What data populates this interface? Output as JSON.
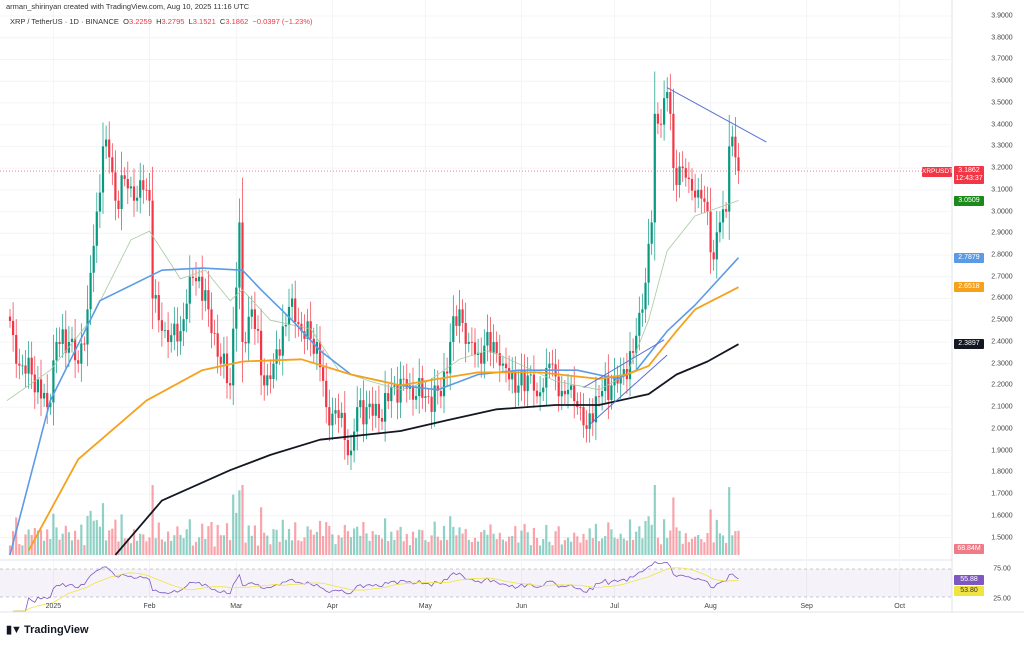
{
  "header": {
    "credit": "arman_shirinyan created with TradingView.com, Aug 10, 2025 11:16 UTC",
    "symbol": "XRP / TetherUS · 1D · BINANCE",
    "o_label": "O",
    "o": "3.2259",
    "h_label": "H",
    "h": "3.2795",
    "l_label": "L",
    "l": "3.1521",
    "c_label": "C",
    "c": "3.1862",
    "change": "−0.0397 (−1.23%)"
  },
  "colors": {
    "up": "#089981",
    "down": "#f23645",
    "ma20": "#a5c9a0",
    "ma50": "#5b9be6",
    "ma100": "#f5a11c",
    "ma200": "#131722",
    "rsi": "#7e57c2",
    "rsi_ma": "#f0e442",
    "trend": "#5b6fd6"
  },
  "chart_data": {
    "type": "candlestick",
    "title": "",
    "y_ticks": [
      "3.9000",
      "3.8000",
      "3.7000",
      "3.6000",
      "3.5000",
      "3.4000",
      "3.3000",
      "3.2000",
      "3.1000",
      "3.0000",
      "2.9000",
      "2.8000",
      "2.7000",
      "2.6000",
      "2.5000",
      "2.4000",
      "2.3000",
      "2.2000",
      "2.1000",
      "2.0000",
      "1.9000",
      "1.8000",
      "1.7000",
      "1.6000",
      "1.5000"
    ],
    "ylim": [
      1.5,
      3.9
    ],
    "x_ticks": [
      {
        "label": "2025",
        "date": "2025-01-01"
      },
      {
        "label": "Feb",
        "date": "2025-02-01"
      },
      {
        "label": "Mar",
        "date": "2025-03-01"
      },
      {
        "label": "Apr",
        "date": "2025-04-01"
      },
      {
        "label": "May",
        "date": "2025-05-01"
      },
      {
        "label": "Jun",
        "date": "2025-06-01"
      },
      {
        "label": "Jul",
        "date": "2025-07-01"
      },
      {
        "label": "Aug",
        "date": "2025-08-01"
      },
      {
        "label": "Sep",
        "date": "2025-09-01"
      },
      {
        "label": "Oct",
        "date": "2025-10-01"
      }
    ],
    "close_keyframes": [
      [
        "2024-12-17",
        2.55
      ],
      [
        "2024-12-20",
        2.3
      ],
      [
        "2024-12-25",
        2.25
      ],
      [
        "2024-12-30",
        2.1
      ],
      [
        "2025-01-02",
        2.4
      ],
      [
        "2025-01-06",
        2.4
      ],
      [
        "2025-01-09",
        2.3
      ],
      [
        "2025-01-12",
        2.55
      ],
      [
        "2025-01-15",
        3.0
      ],
      [
        "2025-01-17",
        3.3
      ],
      [
        "2025-01-19",
        3.25
      ],
      [
        "2025-01-21",
        3.05
      ],
      [
        "2025-01-24",
        3.15
      ],
      [
        "2025-01-27",
        3.05
      ],
      [
        "2025-01-30",
        3.1
      ],
      [
        "2025-02-01",
        3.05
      ],
      [
        "2025-02-02",
        2.6
      ],
      [
        "2025-02-04",
        2.5
      ],
      [
        "2025-02-07",
        2.4
      ],
      [
        "2025-02-11",
        2.45
      ],
      [
        "2025-02-14",
        2.7
      ],
      [
        "2025-02-17",
        2.7
      ],
      [
        "2025-02-20",
        2.55
      ],
      [
        "2025-02-24",
        2.3
      ],
      [
        "2025-02-27",
        2.2
      ],
      [
        "2025-03-02",
        2.95
      ],
      [
        "2025-03-03",
        2.4
      ],
      [
        "2025-03-06",
        2.55
      ],
      [
        "2025-03-10",
        2.2
      ],
      [
        "2025-03-13",
        2.3
      ],
      [
        "2025-03-19",
        2.6
      ],
      [
        "2025-03-22",
        2.45
      ],
      [
        "2025-03-27",
        2.4
      ],
      [
        "2025-03-30",
        2.1
      ],
      [
        "2025-04-03",
        2.05
      ],
      [
        "2025-04-07",
        1.9
      ],
      [
        "2025-04-09",
        2.1
      ],
      [
        "2025-04-12",
        2.1
      ],
      [
        "2025-04-16",
        2.05
      ],
      [
        "2025-04-21",
        2.2
      ],
      [
        "2025-04-26",
        2.2
      ],
      [
        "2025-05-01",
        2.15
      ],
      [
        "2025-05-06",
        2.15
      ],
      [
        "2025-05-09",
        2.4
      ],
      [
        "2025-05-12",
        2.55
      ],
      [
        "2025-05-15",
        2.4
      ],
      [
        "2025-05-18",
        2.35
      ],
      [
        "2025-05-23",
        2.4
      ],
      [
        "2025-05-26",
        2.3
      ],
      [
        "2025-05-31",
        2.2
      ],
      [
        "2025-06-04",
        2.25
      ],
      [
        "2025-06-06",
        2.15
      ],
      [
        "2025-06-10",
        2.3
      ],
      [
        "2025-06-13",
        2.15
      ],
      [
        "2025-06-17",
        2.2
      ],
      [
        "2025-06-20",
        2.1
      ],
      [
        "2025-06-22",
        2.0
      ],
      [
        "2025-06-25",
        2.15
      ],
      [
        "2025-06-30",
        2.2
      ],
      [
        "2025-07-03",
        2.25
      ],
      [
        "2025-07-07",
        2.35
      ],
      [
        "2025-07-10",
        2.55
      ],
      [
        "2025-07-13",
        2.95
      ],
      [
        "2025-07-14",
        3.45
      ],
      [
        "2025-07-16",
        3.4
      ],
      [
        "2025-07-18",
        3.55
      ],
      [
        "2025-07-19",
        3.45
      ],
      [
        "2025-07-20",
        3.2
      ],
      [
        "2025-07-23",
        3.2
      ],
      [
        "2025-07-25",
        3.15
      ],
      [
        "2025-07-28",
        3.1
      ],
      [
        "2025-07-31",
        3.0
      ],
      [
        "2025-08-02",
        2.78
      ],
      [
        "2025-08-04",
        2.95
      ],
      [
        "2025-08-06",
        3.0
      ],
      [
        "2025-08-07",
        3.3
      ],
      [
        "2025-08-09",
        3.25
      ],
      [
        "2025-08-10",
        3.1862
      ]
    ],
    "moving_averages": [
      {
        "key": "ma20",
        "last": "3.0509",
        "points": [
          [
            "2024-12-17",
            2.13
          ],
          [
            "2024-12-31",
            2.27
          ],
          [
            "2025-01-13",
            2.5
          ],
          [
            "2025-01-26",
            2.87
          ],
          [
            "2025-02-01",
            2.91
          ],
          [
            "2025-02-11",
            2.69
          ],
          [
            "2025-02-19",
            2.73
          ],
          [
            "2025-02-27",
            2.59
          ],
          [
            "2025-03-03",
            2.64
          ],
          [
            "2025-03-12",
            2.5
          ],
          [
            "2025-03-25",
            2.46
          ],
          [
            "2025-04-03",
            2.27
          ],
          [
            "2025-04-13",
            2.22
          ],
          [
            "2025-04-23",
            2.18
          ],
          [
            "2025-05-02",
            2.22
          ],
          [
            "2025-05-12",
            2.32
          ],
          [
            "2025-05-21",
            2.36
          ],
          [
            "2025-05-28",
            2.32
          ],
          [
            "2025-06-12",
            2.22
          ],
          [
            "2025-06-26",
            2.18
          ],
          [
            "2025-07-05",
            2.25
          ],
          [
            "2025-07-12",
            2.5
          ],
          [
            "2025-07-18",
            2.82
          ],
          [
            "2025-07-27",
            2.98
          ],
          [
            "2025-08-02",
            3.01
          ],
          [
            "2025-08-10",
            3.0509
          ]
        ]
      },
      {
        "key": "ma50",
        "last": "2.7879",
        "points": [
          [
            "2024-12-18",
            1.42
          ],
          [
            "2024-12-31",
            2.13
          ],
          [
            "2025-01-16",
            2.59
          ],
          [
            "2025-02-05",
            2.73
          ],
          [
            "2025-02-18",
            2.74
          ],
          [
            "2025-03-03",
            2.73
          ],
          [
            "2025-03-09",
            2.64
          ],
          [
            "2025-03-19",
            2.5
          ],
          [
            "2025-03-28",
            2.36
          ],
          [
            "2025-04-07",
            2.25
          ],
          [
            "2025-04-23",
            2.2
          ],
          [
            "2025-05-05",
            2.18
          ],
          [
            "2025-05-18",
            2.25
          ],
          [
            "2025-05-31",
            2.27
          ],
          [
            "2025-06-19",
            2.27
          ],
          [
            "2025-07-02",
            2.23
          ],
          [
            "2025-07-08",
            2.27
          ],
          [
            "2025-07-18",
            2.45
          ],
          [
            "2025-07-27",
            2.57
          ],
          [
            "2025-08-10",
            2.7879
          ]
        ]
      },
      {
        "key": "ma100",
        "last": "2.6518",
        "points": [
          [
            "2024-12-24",
            1.44
          ],
          [
            "2025-01-09",
            1.86
          ],
          [
            "2025-01-31",
            2.13
          ],
          [
            "2025-02-18",
            2.27
          ],
          [
            "2025-03-03",
            2.31
          ],
          [
            "2025-03-22",
            2.32
          ],
          [
            "2025-04-07",
            2.25
          ],
          [
            "2025-04-23",
            2.2
          ],
          [
            "2025-05-05",
            2.23
          ],
          [
            "2025-05-18",
            2.26
          ],
          [
            "2025-06-07",
            2.26
          ],
          [
            "2025-06-26",
            2.23
          ],
          [
            "2025-07-05",
            2.25
          ],
          [
            "2025-07-12",
            2.29
          ],
          [
            "2025-07-21",
            2.45
          ],
          [
            "2025-07-27",
            2.55
          ],
          [
            "2025-08-10",
            2.6518
          ]
        ]
      },
      {
        "key": "ma200",
        "last": "2.3897",
        "points": [
          [
            "2025-01-21",
            1.42
          ],
          [
            "2025-02-05",
            1.67
          ],
          [
            "2025-02-27",
            1.81
          ],
          [
            "2025-03-12",
            1.88
          ],
          [
            "2025-03-28",
            1.95
          ],
          [
            "2025-04-23",
            1.99
          ],
          [
            "2025-05-08",
            2.04
          ],
          [
            "2025-05-24",
            2.09
          ],
          [
            "2025-06-12",
            2.11
          ],
          [
            "2025-06-26",
            2.11
          ],
          [
            "2025-07-12",
            2.16
          ],
          [
            "2025-07-21",
            2.25
          ],
          [
            "2025-07-31",
            2.31
          ],
          [
            "2025-08-10",
            2.3897
          ]
        ]
      }
    ],
    "trendlines": [
      {
        "name": "descending-resistance",
        "from": [
          "2025-07-18",
          3.57
        ],
        "to": [
          "2025-08-19",
          3.32
        ]
      },
      {
        "name": "channel-upper",
        "from": [
          "2025-06-21",
          2.19
        ],
        "to": [
          "2025-07-17",
          2.41
        ]
      },
      {
        "name": "channel-lower",
        "from": [
          "2025-06-23",
          2.02
        ],
        "to": [
          "2025-07-18",
          2.34
        ]
      }
    ],
    "last_price": "3.1862",
    "countdown": "12:43:37",
    "symbol_tag": "XRPUSDT",
    "volume_last": "68.84M",
    "rsi": {
      "upper": "75.00",
      "lower": "25.00",
      "value": "55.88",
      "ma": "53.80"
    }
  }
}
